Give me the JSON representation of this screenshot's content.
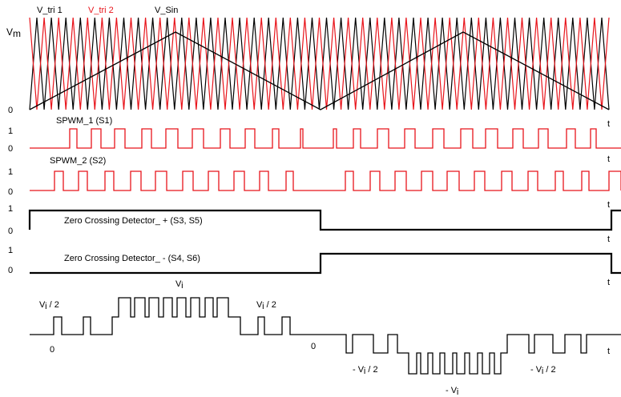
{
  "legend": {
    "tri1": "V_tri 1",
    "tri2": "V_tri 2",
    "sin": "V_Sin"
  },
  "colors": {
    "red": "#e8141b",
    "black": "#000000"
  },
  "panel1": {
    "vm_main": "V",
    "vm_sub": "m",
    "zero": "0",
    "t": "t"
  },
  "panel2": {
    "title": "SPWM_1 (S1)",
    "one": "1",
    "zero": "0",
    "t": "t"
  },
  "panel3": {
    "title": "SPWM_2 (S2)",
    "one": "1",
    "zero": "0",
    "t": "t"
  },
  "panel4": {
    "title": "Zero Crossing Detector_ + (S3, S5)",
    "one": "1",
    "zero": "0",
    "t": "t"
  },
  "panel5": {
    "title": "Zero Crossing Detector_ - (S4, S6)",
    "one": "1",
    "zero": "0",
    "t": "t"
  },
  "output": {
    "vi": "V",
    "vi_sub": "i",
    "half": " / 2",
    "neg_prefix": "- V",
    "zero_left": "0",
    "zero_mid": "0",
    "t": "t"
  }
}
